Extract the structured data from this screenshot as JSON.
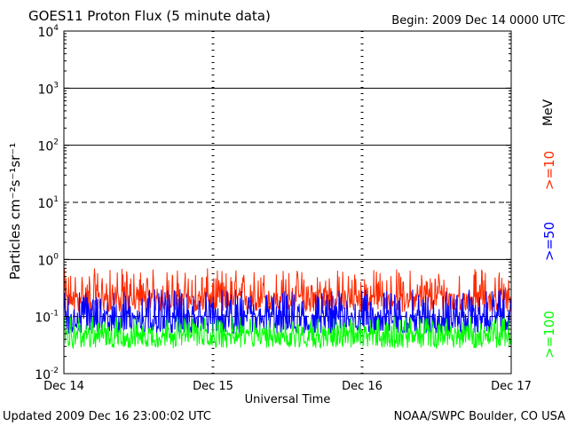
{
  "header": {
    "title": "GOES11 Proton Flux (5 minute data)",
    "begin": "Begin: 2009 Dec 14 0000 UTC"
  },
  "footer": {
    "updated": "Updated 2009 Dec 16 23:00:02 UTC",
    "credit": "NOAA/SWPC Boulder, CO USA"
  },
  "chart_data": {
    "type": "line",
    "title": "GOES11 Proton Flux (5 minute data)",
    "xlabel": "Universal Time",
    "ylabel": "Particles cm⁻²s⁻¹sr⁻¹",
    "y_scale": "log",
    "ylim": [
      0.01,
      10000
    ],
    "x_ticks": [
      "Dec 14",
      "Dec 15",
      "Dec 16",
      "Dec 17"
    ],
    "xlim": [
      "Dec 14",
      "Dec 17"
    ],
    "y_ticks": [
      {
        "base": "10",
        "exp": "4"
      },
      {
        "base": "10",
        "exp": "3"
      },
      {
        "base": "10",
        "exp": "2"
      },
      {
        "base": "10",
        "exp": "1"
      },
      {
        "base": "10",
        "exp": "0"
      },
      {
        "base": "10",
        "exp": "-1"
      },
      {
        "base": "10",
        "exp": "-2"
      }
    ],
    "y_tick_values": [
      10000,
      1000,
      100,
      10,
      1,
      0.1,
      0.01
    ],
    "threshold_lines": [
      {
        "value": 1000,
        "style": "solid"
      },
      {
        "value": 100,
        "style": "solid"
      },
      {
        "value": 10,
        "style": "dashed"
      },
      {
        "value": 1,
        "style": "solid"
      },
      {
        "value": 0.1,
        "style": "dashed"
      }
    ],
    "unit_label": "MeV",
    "series": [
      {
        "name": ">=10",
        "color": "#ff2a00",
        "typical_flux": 0.22,
        "range": [
          0.12,
          0.7
        ]
      },
      {
        "name": ">=50",
        "color": "#0000ff",
        "typical_flux": 0.1,
        "range": [
          0.05,
          0.3
        ]
      },
      {
        "name": ">=100",
        "color": "#00ff00",
        "typical_flux": 0.05,
        "range": [
          0.028,
          0.1
        ]
      }
    ]
  }
}
